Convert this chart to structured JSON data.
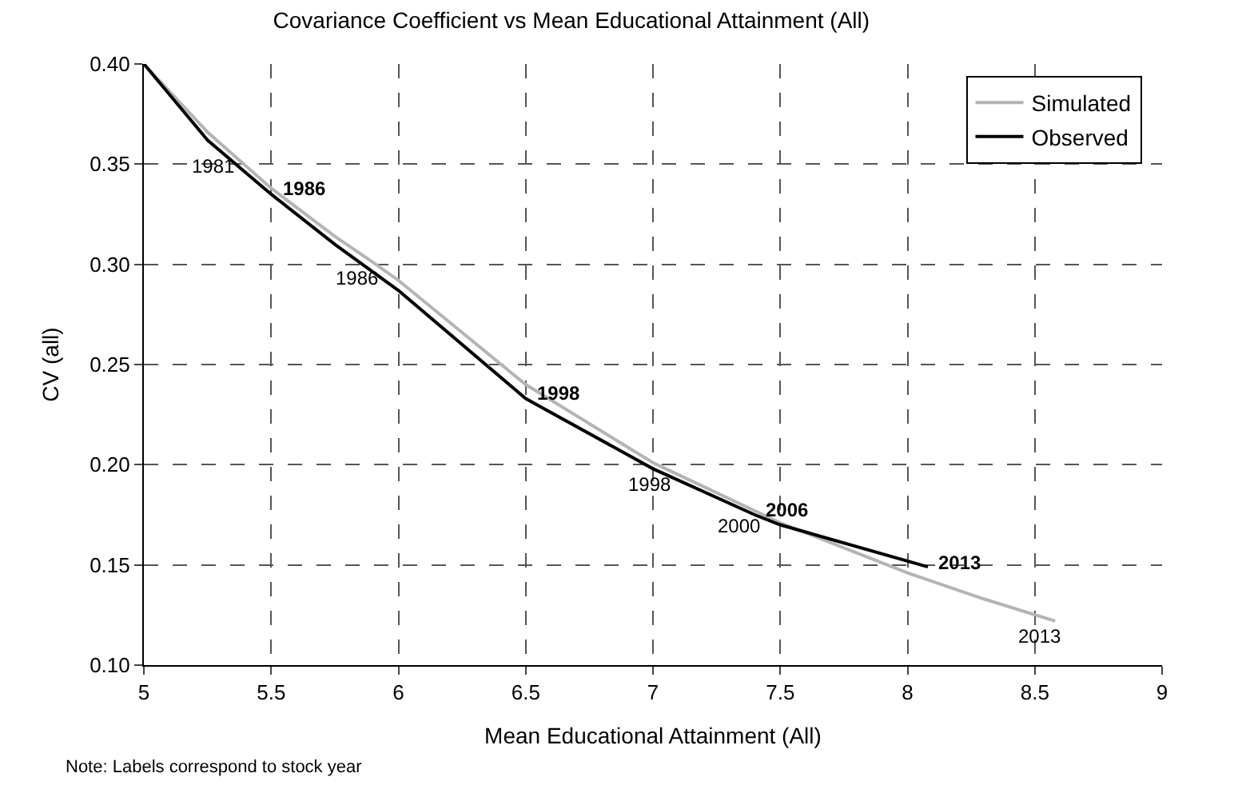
{
  "chart_data": {
    "type": "line",
    "title": "Covariance Coefficient vs Mean Educational Attainment (All)",
    "xlabel": "Mean Educational Attainment (All)",
    "ylabel": "CV (all)",
    "xlim": [
      5,
      9
    ],
    "xticks": [
      5,
      5.5,
      6,
      6.5,
      7,
      7.5,
      8,
      8.5,
      9
    ],
    "ylim": [
      0.1,
      0.4
    ],
    "yticks": [
      {
        "value": 0.1,
        "label": "0.10"
      },
      {
        "value": 0.15,
        "label": "0.15"
      },
      {
        "value": 0.2,
        "label": "0.20"
      },
      {
        "value": 0.25,
        "label": "0.25"
      },
      {
        "value": 0.3,
        "label": "0.30"
      },
      {
        "value": 0.35,
        "label": "0.35"
      },
      {
        "value": 0.4,
        "label": "0.40"
      }
    ],
    "grid": true,
    "legend": "top right",
    "line_style": "solid",
    "marker": "none",
    "series": [
      {
        "name": "Simulated",
        "color": "#b4b4b4",
        "x": [
          5.0,
          5.25,
          5.33,
          5.5,
          5.75,
          5.9,
          6.0,
          6.5,
          7.0,
          7.05,
          7.4,
          7.5,
          8.0,
          8.3,
          8.58
        ],
        "values": [
          0.4,
          0.366,
          0.357,
          0.338,
          0.314,
          0.301,
          0.292,
          0.24,
          0.201,
          0.198,
          0.177,
          0.171,
          0.146,
          0.133,
          0.122
        ]
      },
      {
        "name": "Observed",
        "color": "#000000",
        "x": [
          5.0,
          5.25,
          5.5,
          5.75,
          6.0,
          6.5,
          7.0,
          7.4,
          7.5,
          8.08
        ],
        "values": [
          0.4,
          0.362,
          0.335,
          0.31,
          0.287,
          0.233,
          0.198,
          0.175,
          0.17,
          0.149
        ]
      }
    ],
    "annotations": [
      {
        "text": "1981",
        "x": 5.33,
        "y": 0.357
      },
      {
        "text": "1986",
        "x": 5.9,
        "y": 0.301
      },
      {
        "text": "1998",
        "x": 7.05,
        "y": 0.198
      },
      {
        "text": "2000",
        "x": 7.4,
        "y": 0.177
      },
      {
        "text": "2013",
        "x": 8.58,
        "y": 0.122
      },
      {
        "text": "1986",
        "x": 5.5,
        "y": 0.335
      },
      {
        "text": "1998",
        "x": 6.5,
        "y": 0.233
      },
      {
        "text": "2006",
        "x": 7.4,
        "y": 0.175
      },
      {
        "text": "2013",
        "x": 8.08,
        "y": 0.149
      },
      "Note: Labels correspond to stock year"
    ]
  }
}
